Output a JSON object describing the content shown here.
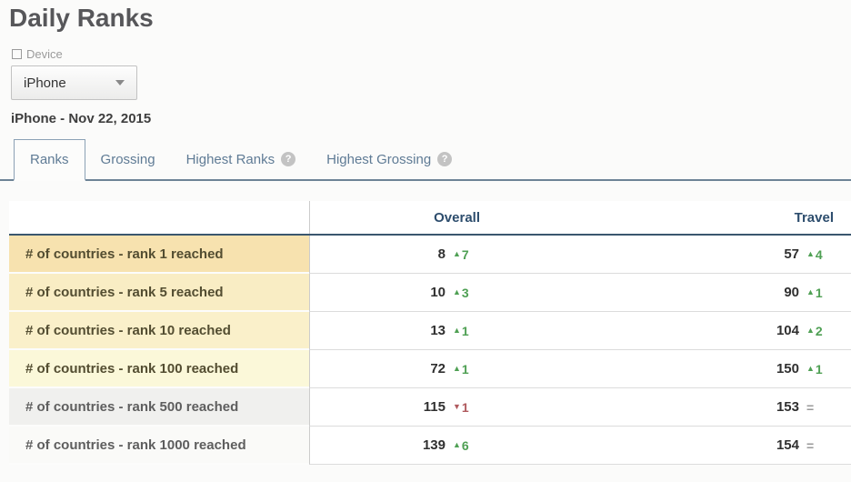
{
  "page": {
    "title": "Daily Ranks",
    "subtitle": "iPhone - Nov 22, 2015"
  },
  "device_filter": {
    "label": "Device",
    "selected": "iPhone"
  },
  "tabs": [
    {
      "label": "Ranks",
      "active": true,
      "help": false
    },
    {
      "label": "Grossing",
      "active": false,
      "help": false
    },
    {
      "label": "Highest Ranks",
      "active": false,
      "help": true
    },
    {
      "label": "Highest Grossing",
      "active": false,
      "help": true
    }
  ],
  "help_glyph": "?",
  "table": {
    "columns": [
      "",
      "Overall",
      "Travel"
    ],
    "rows": [
      {
        "label": "# of countries - rank 1 reached",
        "label_bg": "#f7e2af",
        "label_color": "#534d31",
        "overall": {
          "value": "8",
          "change": "7",
          "direction": "up"
        },
        "travel": {
          "value": "57",
          "change": "4",
          "direction": "up"
        }
      },
      {
        "label": "# of countries - rank 5 reached",
        "label_bg": "#f9edc4",
        "label_color": "#534d31",
        "overall": {
          "value": "10",
          "change": "3",
          "direction": "up"
        },
        "travel": {
          "value": "90",
          "change": "1",
          "direction": "up"
        }
      },
      {
        "label": "# of countries - rank 10 reached",
        "label_bg": "#faf0ca",
        "label_color": "#534d31",
        "overall": {
          "value": "13",
          "change": "1",
          "direction": "up"
        },
        "travel": {
          "value": "104",
          "change": "2",
          "direction": "up"
        }
      },
      {
        "label": "# of countries - rank 100 reached",
        "label_bg": "#fbf8d9",
        "label_color": "#534d31",
        "overall": {
          "value": "72",
          "change": "1",
          "direction": "up"
        },
        "travel": {
          "value": "150",
          "change": "1",
          "direction": "up"
        }
      },
      {
        "label": "# of countries - rank 500 reached",
        "label_bg": "#f0f0ee",
        "label_color": "#5e5e5e",
        "overall": {
          "value": "115",
          "change": "1",
          "direction": "down"
        },
        "travel": {
          "value": "153",
          "change": "",
          "direction": "same"
        }
      },
      {
        "label": "# of countries - rank 1000 reached",
        "label_bg": "#fafaf8",
        "label_color": "#5e5e5e",
        "overall": {
          "value": "139",
          "change": "6",
          "direction": "up"
        },
        "travel": {
          "value": "154",
          "change": "",
          "direction": "same"
        }
      }
    ]
  },
  "glyphs": {
    "up": "▲",
    "down": "▼",
    "same": "="
  },
  "colors": {
    "up": "#4fa054",
    "down": "#b05a5e",
    "same": "#999999"
  }
}
